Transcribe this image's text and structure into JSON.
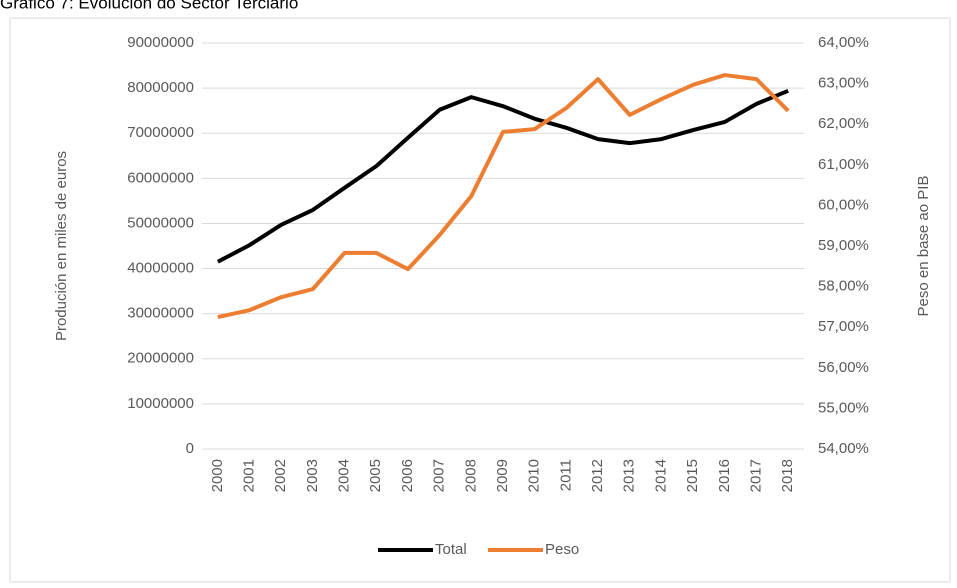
{
  "chart_data": {
    "type": "line",
    "title": "Gráfico 7: Evolución do Sector Terciario",
    "y_label": "Produción en miles de euros",
    "y2_label": "Peso en base ao PIB",
    "categories": [
      "2000",
      "2001",
      "2002",
      "2003",
      "2004",
      "2005",
      "2006",
      "2007",
      "2008",
      "2009",
      "2010",
      "2011",
      "2012",
      "2013",
      "2014",
      "2015",
      "2016",
      "2017",
      "2018"
    ],
    "series": [
      {
        "name": "Total",
        "color": "#000000",
        "values": [
          41500000,
          45200000,
          49700000,
          53000000,
          57900000,
          62700000,
          69000000,
          75200000,
          78000000,
          76000000,
          73200000,
          71200000,
          68700000,
          67800000,
          68700000,
          70700000,
          72500000,
          76500000,
          79400000
        ]
      },
      {
        "name": "Peso",
        "color": "#ed7d31",
        "axis": "y2",
        "values": [
          57.25,
          57.42,
          57.74,
          57.94,
          58.83,
          58.83,
          58.43,
          59.27,
          60.23,
          61.81,
          61.88,
          62.4,
          63.11,
          62.23,
          62.62,
          62.97,
          63.21,
          63.11,
          62.33
        ]
      }
    ],
    "ylim": [
      0,
      90000000
    ],
    "yticks": [
      0,
      10000000,
      20000000,
      30000000,
      40000000,
      50000000,
      60000000,
      70000000,
      80000000,
      90000000
    ],
    "y2lim": [
      54,
      64
    ],
    "y2ticks": [
      {
        "value": 54,
        "label": "54,00%"
      },
      {
        "value": 55,
        "label": "55,00%"
      },
      {
        "value": 56,
        "label": "56,00%"
      },
      {
        "value": 57,
        "label": "57,00%"
      },
      {
        "value": 58,
        "label": "58,00%"
      },
      {
        "value": 59,
        "label": "59,00%"
      },
      {
        "value": 60,
        "label": "60,00%"
      },
      {
        "value": 61,
        "label": "61,00%"
      },
      {
        "value": 62,
        "label": "62,00%"
      },
      {
        "value": 63,
        "label": "63,00%"
      },
      {
        "value": 64,
        "label": "64,00%"
      }
    ],
    "grid": true,
    "legend": "bottom"
  }
}
